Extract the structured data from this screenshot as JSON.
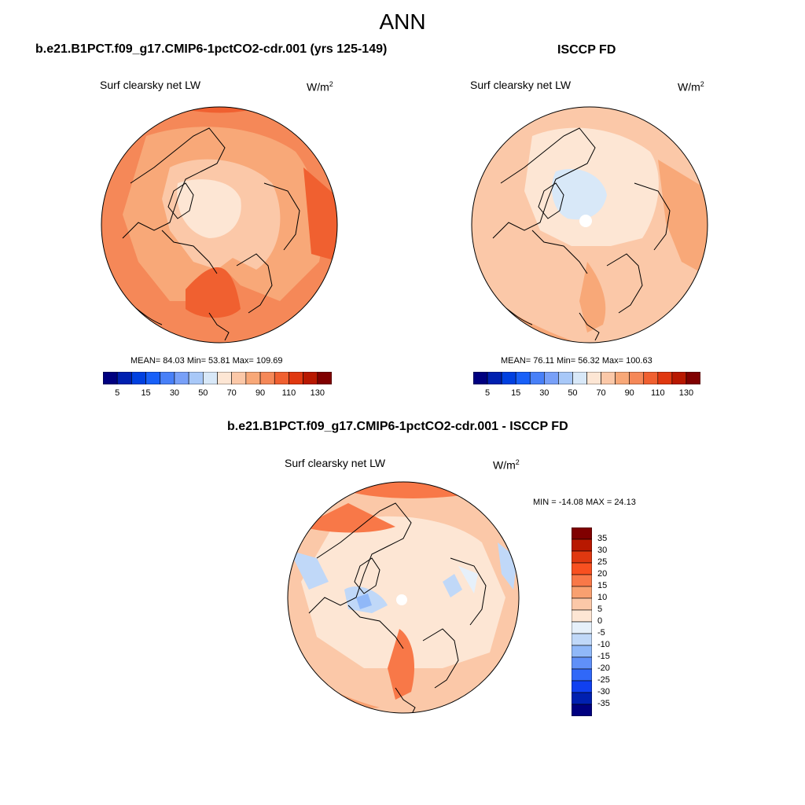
{
  "figure": {
    "title": "ANN",
    "units_base": "W/m",
    "units_exp": "2"
  },
  "panels": {
    "left": {
      "case_title": "b.e21.B1PCT.f09_g17.CMIP6-1pctCO2-cdr.001 (yrs 125-149)",
      "variable": "Surf clearsky net LW",
      "stats": "MEAN=  84.03  Min=  53.81  Max= 109.69"
    },
    "right": {
      "case_title": "ISCCP FD",
      "variable": "Surf clearsky net LW",
      "stats": "MEAN=  76.11  Min=  56.32  Max= 100.63"
    },
    "diff": {
      "case_title": "b.e21.B1PCT.f09_g17.CMIP6-1pctCO2-cdr.001 - ISCCP FD",
      "variable": "Surf clearsky net LW",
      "stats": "MIN = -14.08 MAX =  24.13"
    }
  },
  "chart_data": [
    {
      "type": "heatmap",
      "projection": "north polar stereographic",
      "title": "b.e21.B1PCT.f09_g17.CMIP6-1pctCO2-cdr.001 (yrs 125-149)",
      "variable": "Surf clearsky net LW",
      "units": "W/m2",
      "mean": 84.03,
      "min": 53.81,
      "max": 109.69,
      "colorbar": {
        "levels": [
          5,
          10,
          15,
          20,
          30,
          40,
          50,
          60,
          70,
          80,
          90,
          100,
          110,
          120,
          130
        ],
        "tick_labels": [
          "5",
          "15",
          "30",
          "50",
          "70",
          "90",
          "110",
          "130"
        ],
        "colors": [
          "#000080",
          "#0020b0",
          "#0040e0",
          "#1860f8",
          "#4880f8",
          "#78a0f8",
          "#a8c8f8",
          "#d8e8f8",
          "#fde6d4",
          "#fbc8a8",
          "#f8a878",
          "#f58858",
          "#f06030",
          "#e03810",
          "#b81800",
          "#800000"
        ]
      }
    },
    {
      "type": "heatmap",
      "projection": "north polar stereographic",
      "title": "ISCCP FD",
      "variable": "Surf clearsky net LW",
      "units": "W/m2",
      "mean": 76.11,
      "min": 56.32,
      "max": 100.63,
      "colorbar": {
        "levels": [
          5,
          10,
          15,
          20,
          30,
          40,
          50,
          60,
          70,
          80,
          90,
          100,
          110,
          120,
          130
        ],
        "tick_labels": [
          "5",
          "15",
          "30",
          "50",
          "70",
          "90",
          "110",
          "130"
        ],
        "colors": [
          "#000080",
          "#0020b0",
          "#0040e0",
          "#1860f8",
          "#4880f8",
          "#78a0f8",
          "#a8c8f8",
          "#d8e8f8",
          "#fde6d4",
          "#fbc8a8",
          "#f8a878",
          "#f58858",
          "#f06030",
          "#e03810",
          "#b81800",
          "#800000"
        ]
      }
    },
    {
      "type": "heatmap",
      "projection": "north polar stereographic",
      "title": "b.e21.B1PCT.f09_g17.CMIP6-1pctCO2-cdr.001 - ISCCP FD",
      "variable": "Surf clearsky net LW",
      "units": "W/m2",
      "min": -14.08,
      "max": 24.13,
      "colorbar": {
        "levels": [
          35,
          30,
          25,
          20,
          15,
          10,
          5,
          0,
          -5,
          -10,
          -15,
          -20,
          -25,
          -30,
          -35
        ],
        "tick_labels": [
          "35",
          "30",
          "25",
          "20",
          "15",
          "10",
          "5",
          "0",
          "-5",
          "-10",
          "-15",
          "-20",
          "-25",
          "-30",
          "-35"
        ],
        "colors": [
          "#800000",
          "#b81800",
          "#e03810",
          "#f85020",
          "#f87848",
          "#f8a070",
          "#fbc8a8",
          "#fde6d4",
          "#e6f0fa",
          "#c0d8f8",
          "#90b8f8",
          "#6090f8",
          "#3068f8",
          "#1040f0",
          "#0020b0",
          "#000080"
        ]
      }
    }
  ]
}
